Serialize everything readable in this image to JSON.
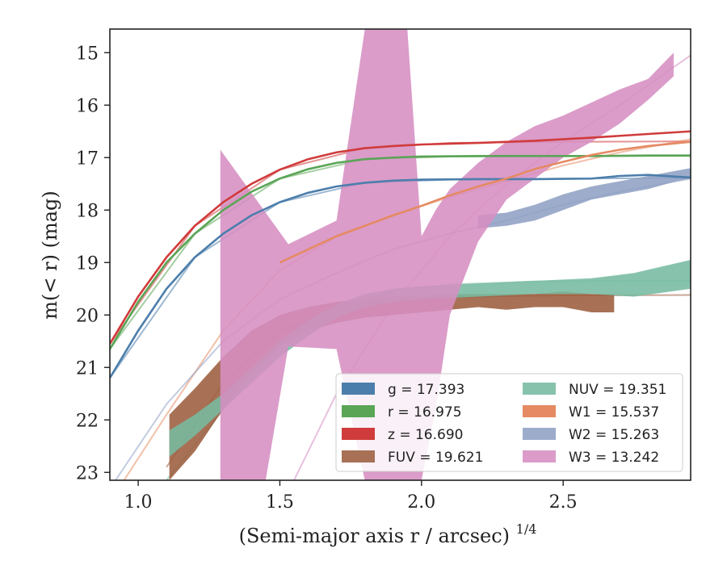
{
  "chart_data": {
    "type": "area",
    "xlabel": "(Semi-major axis r / arcsec)",
    "xlabel_sup": "1/4",
    "ylabel": "m(< r) (mag)",
    "xlim": [
      0.9,
      2.95
    ],
    "ylim": [
      23.15,
      14.55
    ],
    "y_inverted": true,
    "xticks": [
      1.0,
      1.5,
      2.0,
      2.5
    ],
    "xtick_labels": [
      "1.0",
      "1.5",
      "2.0",
      "2.5"
    ],
    "yticks": [
      15,
      16,
      17,
      18,
      19,
      20,
      21,
      22,
      23
    ],
    "ytick_labels": [
      "15",
      "16",
      "17",
      "18",
      "19",
      "20",
      "21",
      "22",
      "23"
    ],
    "grid": false,
    "legend_position": "lower-right",
    "series": [
      {
        "name": "g",
        "legend": "g = 17.393",
        "color": "#4c7eab",
        "kind": "line",
        "x": [
          0.9,
          1.0,
          1.1,
          1.2,
          1.3,
          1.4,
          1.5,
          1.6,
          1.7,
          1.8,
          1.9,
          2.0,
          2.2,
          2.4,
          2.6,
          2.7,
          2.8,
          2.95
        ],
        "y": [
          21.2,
          20.3,
          19.5,
          18.9,
          18.45,
          18.1,
          17.85,
          17.67,
          17.55,
          17.48,
          17.44,
          17.42,
          17.41,
          17.41,
          17.4,
          17.35,
          17.33,
          17.38
        ]
      },
      {
        "name": "r",
        "legend": "r = 16.975",
        "color": "#5aa556",
        "kind": "line",
        "x": [
          0.9,
          1.0,
          1.1,
          1.2,
          1.3,
          1.4,
          1.5,
          1.6,
          1.7,
          1.8,
          1.9,
          2.0,
          2.2,
          2.4,
          2.6,
          2.8,
          2.95
        ],
        "y": [
          20.65,
          19.75,
          19.0,
          18.45,
          18.0,
          17.65,
          17.4,
          17.22,
          17.1,
          17.03,
          17.0,
          16.98,
          16.97,
          16.97,
          16.97,
          16.96,
          16.96
        ]
      },
      {
        "name": "z",
        "legend": "z = 16.690",
        "color": "#d03b3b",
        "kind": "line",
        "x": [
          0.9,
          1.0,
          1.1,
          1.2,
          1.3,
          1.4,
          1.5,
          1.6,
          1.7,
          1.8,
          1.9,
          2.0,
          2.2,
          2.4,
          2.6,
          2.8,
          2.95
        ],
        "y": [
          20.55,
          19.65,
          18.9,
          18.3,
          17.85,
          17.5,
          17.23,
          17.03,
          16.9,
          16.82,
          16.78,
          16.75,
          16.72,
          16.68,
          16.62,
          16.55,
          16.5
        ]
      },
      {
        "name": "FUV",
        "legend": "FUV = 19.621",
        "color": "#9c5d3f",
        "kind": "band",
        "x": [
          1.11,
          1.2,
          1.3,
          1.4,
          1.5,
          1.6,
          1.7,
          1.8,
          1.9,
          2.0,
          2.1,
          2.2,
          2.3,
          2.4,
          2.5,
          2.6,
          2.68
        ],
        "y_upper": [
          21.9,
          21.4,
          20.8,
          20.3,
          20.0,
          19.85,
          19.75,
          19.7,
          19.65,
          19.62,
          19.6,
          19.6,
          19.6,
          19.6,
          19.55,
          19.6,
          19.6
        ],
        "y_lower": [
          23.15,
          22.6,
          21.8,
          21.1,
          20.6,
          20.3,
          20.15,
          20.05,
          20.0,
          19.95,
          19.9,
          19.85,
          19.9,
          19.85,
          19.85,
          19.95,
          19.95
        ]
      },
      {
        "name": "NUV",
        "legend": "NUV = 19.351",
        "color": "#76bba0",
        "kind": "band",
        "x": [
          1.11,
          1.2,
          1.3,
          1.4,
          1.5,
          1.6,
          1.7,
          1.8,
          1.9,
          2.0,
          2.2,
          2.4,
          2.6,
          2.75,
          2.95
        ],
        "y_upper": [
          22.2,
          21.9,
          21.5,
          21.0,
          20.5,
          20.1,
          19.8,
          19.6,
          19.5,
          19.45,
          19.4,
          19.35,
          19.3,
          19.2,
          18.95
        ],
        "y_lower": [
          22.7,
          22.3,
          21.8,
          21.3,
          20.8,
          20.4,
          20.05,
          19.85,
          19.75,
          19.7,
          19.65,
          19.6,
          19.6,
          19.65,
          19.5
        ]
      },
      {
        "name": "W1",
        "legend": "W1 = 15.537",
        "color": "#e58a63",
        "kind": "line",
        "x": [
          1.5,
          1.6,
          1.7,
          1.8,
          1.9,
          2.0,
          2.1,
          2.2,
          2.3,
          2.4,
          2.5,
          2.6,
          2.7,
          2.8,
          2.95
        ],
        "y": [
          19.0,
          18.75,
          18.5,
          18.3,
          18.1,
          17.92,
          17.72,
          17.55,
          17.4,
          17.22,
          17.08,
          16.95,
          16.85,
          16.78,
          16.7
        ]
      },
      {
        "name": "W2",
        "legend": "W2 = 15.263",
        "color": "#8fa0c4",
        "kind": "band",
        "x": [
          2.2,
          2.3,
          2.4,
          2.5,
          2.6,
          2.7,
          2.8,
          2.9,
          2.95
        ],
        "y_upper": [
          18.1,
          18.05,
          17.9,
          17.7,
          17.55,
          17.45,
          17.35,
          17.25,
          17.2
        ],
        "y_lower": [
          18.35,
          18.3,
          18.2,
          18.0,
          17.8,
          17.7,
          17.6,
          17.45,
          17.4
        ]
      },
      {
        "name": "W3",
        "legend": "W3 = 13.242",
        "color": "#d68ec2",
        "kind": "band",
        "x": [
          1.29,
          1.45,
          1.53,
          1.7,
          1.8,
          1.9,
          1.95,
          2.0,
          2.05,
          2.1,
          2.2,
          2.3,
          2.4,
          2.5,
          2.6,
          2.7,
          2.8,
          2.89
        ],
        "y_upper": [
          16.85,
          18.05,
          18.65,
          18.2,
          14.55,
          14.55,
          14.55,
          18.5,
          18.0,
          17.6,
          17.1,
          16.7,
          16.4,
          16.2,
          15.95,
          15.7,
          15.5,
          15.0
        ],
        "y_lower": [
          23.15,
          23.15,
          20.6,
          20.65,
          23.15,
          23.15,
          23.15,
          23.15,
          21.8,
          20.0,
          18.6,
          17.8,
          17.4,
          17.0,
          16.7,
          16.35,
          15.9,
          15.45
        ]
      }
    ],
    "model_curves": [
      {
        "name": "g-model",
        "color": "#4c7eab",
        "x": [
          0.9,
          1.2,
          1.5,
          1.8,
          2.1,
          2.5,
          2.95
        ],
        "y": [
          21.2,
          18.9,
          17.85,
          17.48,
          17.42,
          17.4,
          17.39
        ]
      },
      {
        "name": "r-model",
        "color": "#5aa556",
        "x": [
          0.9,
          1.2,
          1.5,
          1.8,
          2.1,
          2.5,
          2.95
        ],
        "y": [
          20.65,
          18.45,
          17.4,
          17.03,
          16.98,
          16.97,
          16.97
        ]
      },
      {
        "name": "z-model",
        "color": "#d03b3b",
        "x": [
          0.9,
          1.2,
          1.5,
          1.8,
          2.1,
          2.5,
          2.95
        ],
        "y": [
          20.55,
          18.3,
          17.23,
          16.82,
          16.72,
          16.7,
          16.69
        ]
      },
      {
        "name": "FUV-model",
        "color": "#9c5d3f",
        "x": [
          1.1,
          1.3,
          1.5,
          1.7,
          1.9,
          2.1,
          2.4,
          2.95
        ],
        "y": [
          22.9,
          21.3,
          20.3,
          19.92,
          19.73,
          19.66,
          19.63,
          19.62
        ]
      },
      {
        "name": "NUV-model",
        "color": "#76bba0",
        "x": [
          1.1,
          1.3,
          1.5,
          1.7,
          1.9,
          2.1,
          2.4,
          2.95
        ],
        "y": [
          23.15,
          21.8,
          20.6,
          19.9,
          19.55,
          19.42,
          19.36,
          19.35
        ]
      },
      {
        "name": "W1-model",
        "color": "#e58a63",
        "x": [
          0.95,
          1.1,
          1.3,
          1.5,
          1.7,
          1.9,
          2.1,
          2.3,
          2.5,
          2.7,
          2.95
        ],
        "y": [
          23.15,
          21.9,
          20.3,
          19.15,
          18.5,
          18.1,
          17.75,
          17.45,
          17.15,
          16.9,
          16.65
        ]
      },
      {
        "name": "W2-model",
        "color": "#8fa0c4",
        "x": [
          0.92,
          1.1,
          1.3,
          1.5,
          1.7,
          1.9,
          2.1,
          2.3,
          2.5,
          2.7,
          2.95
        ],
        "y": [
          23.15,
          21.7,
          20.5,
          19.7,
          19.2,
          18.75,
          18.45,
          18.2,
          17.9,
          17.65,
          17.4
        ]
      },
      {
        "name": "W3-model",
        "color": "#d68ec2",
        "x": [
          1.55,
          1.7,
          1.9,
          2.1,
          2.3,
          2.5,
          2.7,
          2.95
        ],
        "y": [
          23.15,
          21.5,
          19.8,
          18.5,
          17.5,
          16.7,
          16.0,
          15.05
        ]
      }
    ]
  }
}
